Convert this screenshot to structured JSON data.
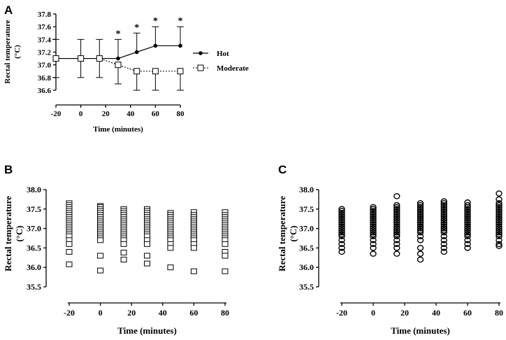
{
  "chart_data": [
    {
      "panel": "A",
      "type": "line",
      "xlabel": "Time (minutes)",
      "ylabel_line1": "Rectal temperature",
      "ylabel_line2": "(°C)",
      "x": [
        -20,
        0,
        15,
        30,
        45,
        60,
        80
      ],
      "x_ticks": [
        "-20",
        "0",
        "20",
        "40",
        "60",
        "80"
      ],
      "x_tick_values": [
        -20,
        0,
        20,
        40,
        60,
        80
      ],
      "xlim": [
        -20,
        80
      ],
      "y_ticks": [
        "36.6",
        "36.8",
        "37.0",
        "37.2",
        "37.4",
        "37.6",
        "37.8"
      ],
      "y_tick_values": [
        36.6,
        36.8,
        37.0,
        37.2,
        37.4,
        37.6,
        37.8
      ],
      "ylim": [
        36.6,
        37.8
      ],
      "series": [
        {
          "name": "Hot",
          "marker": "filled-circle",
          "line": "solid",
          "values": [
            37.1,
            37.1,
            37.1,
            37.1,
            37.2,
            37.3,
            37.3
          ],
          "err_upper": [
            37.4,
            37.4,
            37.4,
            37.4,
            37.5,
            37.6,
            37.6
          ]
        },
        {
          "name": "Moderate",
          "marker": "open-square",
          "line": "dotted",
          "values": [
            37.1,
            37.1,
            37.1,
            37.0,
            36.9,
            36.9,
            36.9
          ],
          "err_lower": [
            36.8,
            36.8,
            36.8,
            36.7,
            36.6,
            36.6,
            36.6
          ]
        }
      ],
      "significance": {
        "symbol": "*",
        "at_x": [
          30,
          45,
          60,
          80
        ]
      }
    },
    {
      "panel": "B",
      "type": "scatter",
      "marker": "open-square",
      "xlabel": "Time (minutes)",
      "ylabel_line1": "Rectal temperature",
      "ylabel_line2": "(°C)",
      "x_ticks": [
        "-20",
        "0",
        "20",
        "40",
        "60",
        "80"
      ],
      "x_tick_values": [
        -20,
        0,
        20,
        40,
        60,
        80
      ],
      "xlim": [
        -25,
        85
      ],
      "y_ticks": [
        "35.5",
        "36.0",
        "36.5",
        "37.0",
        "37.5",
        "38.0"
      ],
      "y_tick_values": [
        35.5,
        36.0,
        36.5,
        37.0,
        37.5,
        38.0
      ],
      "ylim": [
        35.5,
        38.0
      ],
      "groups": [
        {
          "x": -20,
          "values": [
            37.65,
            37.6,
            37.55,
            37.5,
            37.45,
            37.4,
            37.35,
            37.3,
            37.25,
            37.2,
            37.15,
            37.1,
            37.05,
            37.0,
            36.95,
            36.9,
            36.85,
            36.8,
            36.7,
            36.6,
            36.4,
            36.08
          ]
        },
        {
          "x": 0,
          "values": [
            37.58,
            37.55,
            37.5,
            37.45,
            37.4,
            37.35,
            37.3,
            37.25,
            37.2,
            37.15,
            37.1,
            37.05,
            37.0,
            36.95,
            36.9,
            36.85,
            36.8,
            36.75,
            36.7,
            36.3,
            35.92
          ]
        },
        {
          "x": 15,
          "values": [
            37.5,
            37.45,
            37.4,
            37.35,
            37.3,
            37.25,
            37.2,
            37.15,
            37.1,
            37.05,
            37.0,
            36.95,
            36.9,
            36.85,
            36.8,
            36.75,
            36.7,
            36.6,
            36.38,
            36.2
          ]
        },
        {
          "x": 30,
          "values": [
            37.5,
            37.45,
            37.4,
            37.35,
            37.3,
            37.25,
            37.2,
            37.15,
            37.1,
            37.05,
            37.0,
            36.95,
            36.9,
            36.85,
            36.8,
            36.7,
            36.6,
            36.3,
            36.1
          ]
        },
        {
          "x": 45,
          "values": [
            37.4,
            37.35,
            37.3,
            37.25,
            37.2,
            37.15,
            37.1,
            37.05,
            37.0,
            36.95,
            36.9,
            36.85,
            36.8,
            36.75,
            36.7,
            36.6,
            36.5,
            36.0
          ]
        },
        {
          "x": 60,
          "values": [
            37.42,
            37.35,
            37.3,
            37.25,
            37.2,
            37.15,
            37.1,
            37.05,
            37.0,
            36.95,
            36.9,
            36.85,
            36.8,
            36.75,
            36.7,
            36.6,
            36.5,
            35.9
          ]
        },
        {
          "x": 80,
          "values": [
            37.42,
            37.35,
            37.3,
            37.25,
            37.2,
            37.15,
            37.1,
            37.05,
            37.0,
            36.95,
            36.9,
            36.85,
            36.8,
            36.75,
            36.7,
            36.6,
            36.4,
            36.3,
            35.9
          ]
        }
      ]
    },
    {
      "panel": "C",
      "type": "scatter",
      "marker": "open-circle",
      "xlabel": "Time (minutes)",
      "ylabel_line1": "Rectal temperature",
      "ylabel_line2": "(°C)",
      "x_ticks": [
        "-20",
        "0",
        "20",
        "40",
        "60",
        "80"
      ],
      "x_tick_values": [
        -20,
        0,
        20,
        40,
        60,
        80
      ],
      "xlim": [
        -25,
        85
      ],
      "y_ticks": [
        "35.5",
        "36.0",
        "36.5",
        "37.0",
        "37.5",
        "38.0"
      ],
      "y_tick_values": [
        35.5,
        36.0,
        36.5,
        37.0,
        37.5,
        38.0
      ],
      "ylim": [
        35.5,
        38.0
      ],
      "groups": [
        {
          "x": -20,
          "values": [
            37.5,
            37.45,
            37.4,
            37.35,
            37.3,
            37.25,
            37.2,
            37.15,
            37.1,
            37.05,
            37.0,
            36.95,
            36.9,
            36.85,
            36.8,
            36.7,
            36.6,
            36.5,
            36.4
          ]
        },
        {
          "x": 0,
          "values": [
            37.55,
            37.5,
            37.45,
            37.4,
            37.35,
            37.3,
            37.25,
            37.2,
            37.15,
            37.1,
            37.05,
            37.0,
            36.95,
            36.9,
            36.85,
            36.8,
            36.7,
            36.6,
            36.5,
            36.35
          ]
        },
        {
          "x": 15,
          "values": [
            37.83,
            37.6,
            37.55,
            37.5,
            37.45,
            37.4,
            37.35,
            37.3,
            37.25,
            37.2,
            37.15,
            37.1,
            37.05,
            37.0,
            36.95,
            36.9,
            36.85,
            36.8,
            36.7,
            36.6,
            36.5,
            36.35
          ]
        },
        {
          "x": 30,
          "values": [
            37.65,
            37.6,
            37.55,
            37.5,
            37.45,
            37.4,
            37.35,
            37.3,
            37.25,
            37.2,
            37.15,
            37.1,
            37.05,
            37.0,
            36.95,
            36.9,
            36.8,
            36.7,
            36.5,
            36.35,
            36.2
          ]
        },
        {
          "x": 45,
          "values": [
            37.7,
            37.65,
            37.6,
            37.55,
            37.5,
            37.45,
            37.4,
            37.35,
            37.3,
            37.25,
            37.2,
            37.15,
            37.1,
            37.05,
            37.0,
            36.95,
            36.9,
            36.8,
            36.7,
            36.6,
            36.5,
            36.4
          ]
        },
        {
          "x": 60,
          "values": [
            37.67,
            37.6,
            37.55,
            37.5,
            37.45,
            37.4,
            37.35,
            37.3,
            37.25,
            37.2,
            37.15,
            37.1,
            37.05,
            37.0,
            36.95,
            36.9,
            36.85,
            36.8,
            36.7,
            36.6,
            36.5
          ]
        },
        {
          "x": 80,
          "values": [
            37.9,
            37.75,
            37.65,
            37.6,
            37.55,
            37.5,
            37.45,
            37.4,
            37.35,
            37.3,
            37.25,
            37.2,
            37.15,
            37.1,
            37.05,
            37.0,
            36.95,
            36.9,
            36.85,
            36.8,
            36.7,
            36.6,
            36.55
          ]
        }
      ]
    }
  ]
}
